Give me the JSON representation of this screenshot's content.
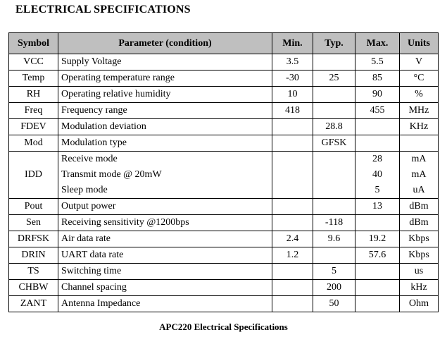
{
  "title": "ELECTRICAL SPECIFICATIONS",
  "headers": [
    "Symbol",
    "Parameter (condition)",
    "Min.",
    "Typ.",
    "Max.",
    "Units"
  ],
  "rows": [
    {
      "symbol": "VCC",
      "params": [
        "Supply Voltage"
      ],
      "min": [
        "3.5"
      ],
      "typ": [
        ""
      ],
      "max": [
        "5.5"
      ],
      "units": [
        "V"
      ]
    },
    {
      "symbol": "Temp",
      "params": [
        "Operating temperature range"
      ],
      "min": [
        "-30"
      ],
      "typ": [
        "25"
      ],
      "max": [
        "85"
      ],
      "units": [
        "°C"
      ]
    },
    {
      "symbol": "RH",
      "params": [
        "Operating relative humidity"
      ],
      "min": [
        "10"
      ],
      "typ": [
        ""
      ],
      "max": [
        "90"
      ],
      "units": [
        "%"
      ]
    },
    {
      "symbol": "Freq",
      "params": [
        "Frequency range"
      ],
      "min": [
        "418"
      ],
      "typ": [
        ""
      ],
      "max": [
        "455"
      ],
      "units": [
        "MHz"
      ]
    },
    {
      "symbol": "FDEV",
      "params": [
        "Modulation deviation"
      ],
      "min": [
        ""
      ],
      "typ": [
        "28.8"
      ],
      "max": [
        ""
      ],
      "units": [
        "KHz"
      ]
    },
    {
      "symbol": "Mod",
      "params": [
        "Modulation type"
      ],
      "min": [
        ""
      ],
      "typ": [
        "GFSK"
      ],
      "max": [
        ""
      ],
      "units": [
        ""
      ]
    },
    {
      "symbol": "IDD",
      "params": [
        "Receive mode",
        "Transmit mode @ 20mW",
        "Sleep mode"
      ],
      "min": [
        "",
        "",
        ""
      ],
      "typ": [
        "",
        "",
        ""
      ],
      "max": [
        "28",
        "40",
        "5"
      ],
      "units": [
        "mA",
        "mA",
        "uA"
      ]
    },
    {
      "symbol": "Pout",
      "params": [
        "Output power"
      ],
      "min": [
        ""
      ],
      "typ": [
        ""
      ],
      "max": [
        "13"
      ],
      "units": [
        "dBm"
      ]
    },
    {
      "symbol": "Sen",
      "params": [
        "Receiving sensitivity @1200bps"
      ],
      "min": [
        ""
      ],
      "typ": [
        "-118"
      ],
      "max": [
        ""
      ],
      "units": [
        "dBm"
      ]
    },
    {
      "symbol": "DRFSK",
      "params": [
        "Air data rate"
      ],
      "min": [
        "2.4"
      ],
      "typ": [
        "9.6"
      ],
      "max": [
        "19.2"
      ],
      "units": [
        "Kbps"
      ]
    },
    {
      "symbol": "DRIN",
      "params": [
        "UART data rate"
      ],
      "min": [
        "1.2"
      ],
      "typ": [
        ""
      ],
      "max": [
        "57.6"
      ],
      "units": [
        "Kbps"
      ]
    },
    {
      "symbol": "TS",
      "params": [
        "Switching time"
      ],
      "min": [
        ""
      ],
      "typ": [
        "5"
      ],
      "max": [
        ""
      ],
      "units": [
        "us"
      ]
    },
    {
      "symbol": "CHBW",
      "params": [
        "Channel spacing"
      ],
      "min": [
        ""
      ],
      "typ": [
        "200"
      ],
      "max": [
        ""
      ],
      "units": [
        "kHz"
      ]
    },
    {
      "symbol": "ZANT",
      "params": [
        "Antenna Impedance"
      ],
      "min": [
        ""
      ],
      "typ": [
        "50"
      ],
      "max": [
        ""
      ],
      "units": [
        "Ohm"
      ]
    }
  ],
  "caption": "APC220 Electrical Specifications"
}
